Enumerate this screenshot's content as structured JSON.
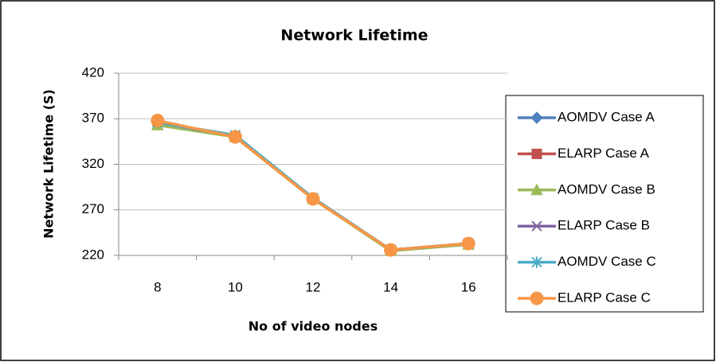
{
  "chart_data": {
    "type": "line",
    "title": "Network Lifetime",
    "x_label": "No of video nodes",
    "y_label": "Network Lifetime (S)",
    "categories": [
      "8",
      "10",
      "12",
      "14",
      "16"
    ],
    "series": [
      {
        "name": "AOMDV Case A",
        "color": "#4f81bd",
        "marker": "diamond",
        "values": [
          365,
          351,
          283,
          226,
          233
        ]
      },
      {
        "name": "ELARP Case A",
        "color": "#c0504d",
        "marker": "square",
        "values": [
          367,
          350,
          282,
          226,
          233
        ]
      },
      {
        "name": "AOMDV Case B",
        "color": "#9bbb59",
        "marker": "triangle",
        "values": [
          363,
          350,
          282,
          225,
          232
        ]
      },
      {
        "name": "ELARP Case B",
        "color": "#8064a2",
        "marker": "x",
        "values": [
          366,
          351,
          283,
          226,
          233
        ]
      },
      {
        "name": "AOMDV Case C",
        "color": "#4bacc6",
        "marker": "star",
        "values": [
          366,
          352,
          283,
          226,
          233
        ]
      },
      {
        "name": "ELARP Case C",
        "color": "#f79646",
        "marker": "circle",
        "values": [
          368,
          350,
          282,
          226,
          233
        ]
      }
    ],
    "ylim": [
      220,
      420
    ],
    "yticks": [
      220,
      270,
      320,
      370,
      420
    ],
    "grid": true,
    "legend": "right"
  }
}
